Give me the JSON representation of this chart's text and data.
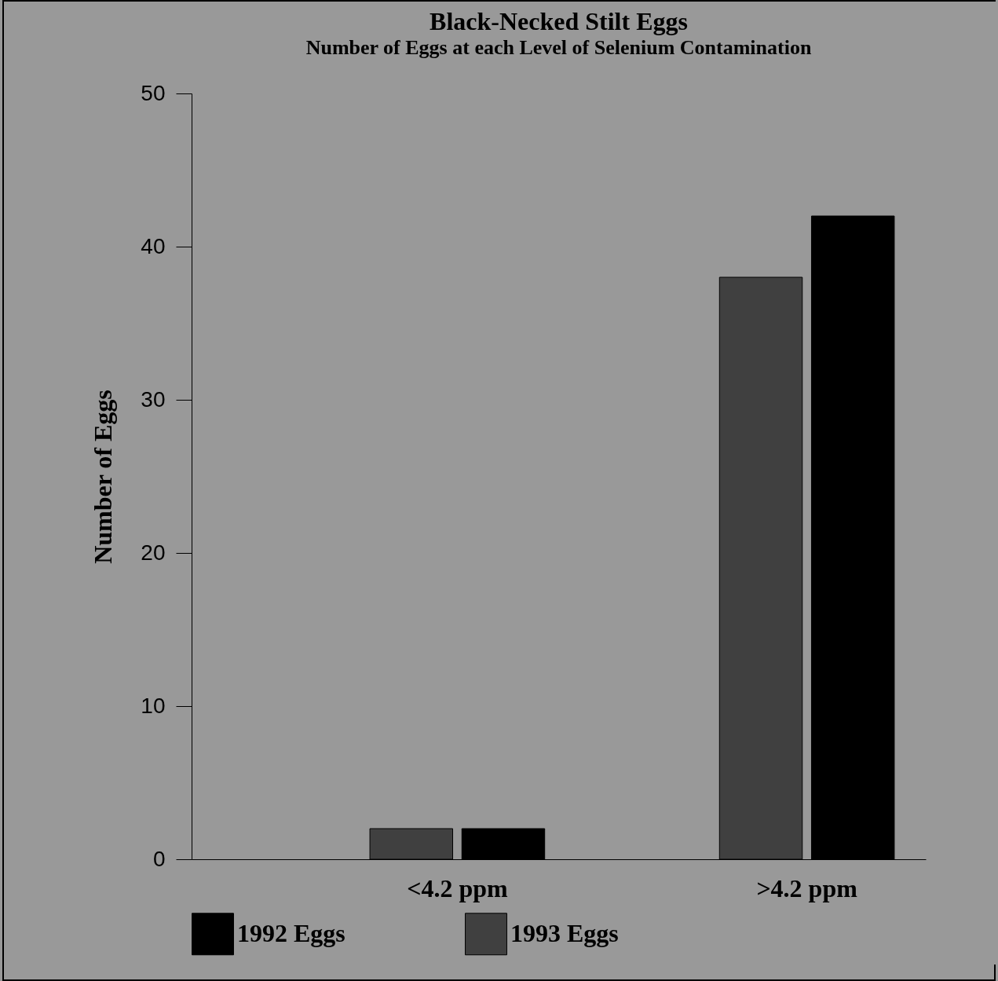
{
  "chart_data": {
    "type": "bar",
    "title": "Black-Necked Stilt Eggs",
    "subtitle": "Number of Eggs at each Level of Selenium Contamination",
    "ylabel": "Number of Eggs",
    "categories": [
      "<4.2 ppm",
      ">4.2 ppm"
    ],
    "series": [
      {
        "name": "1993 Eggs",
        "color": "#404040",
        "values": [
          2,
          38
        ]
      },
      {
        "name": "1992 Eggs",
        "color": "#000000",
        "values": [
          2,
          42
        ]
      }
    ],
    "ylim": [
      0,
      50
    ],
    "yticks": [
      0,
      10,
      20,
      30,
      40,
      50
    ],
    "grid": false,
    "legend": "bottom"
  }
}
